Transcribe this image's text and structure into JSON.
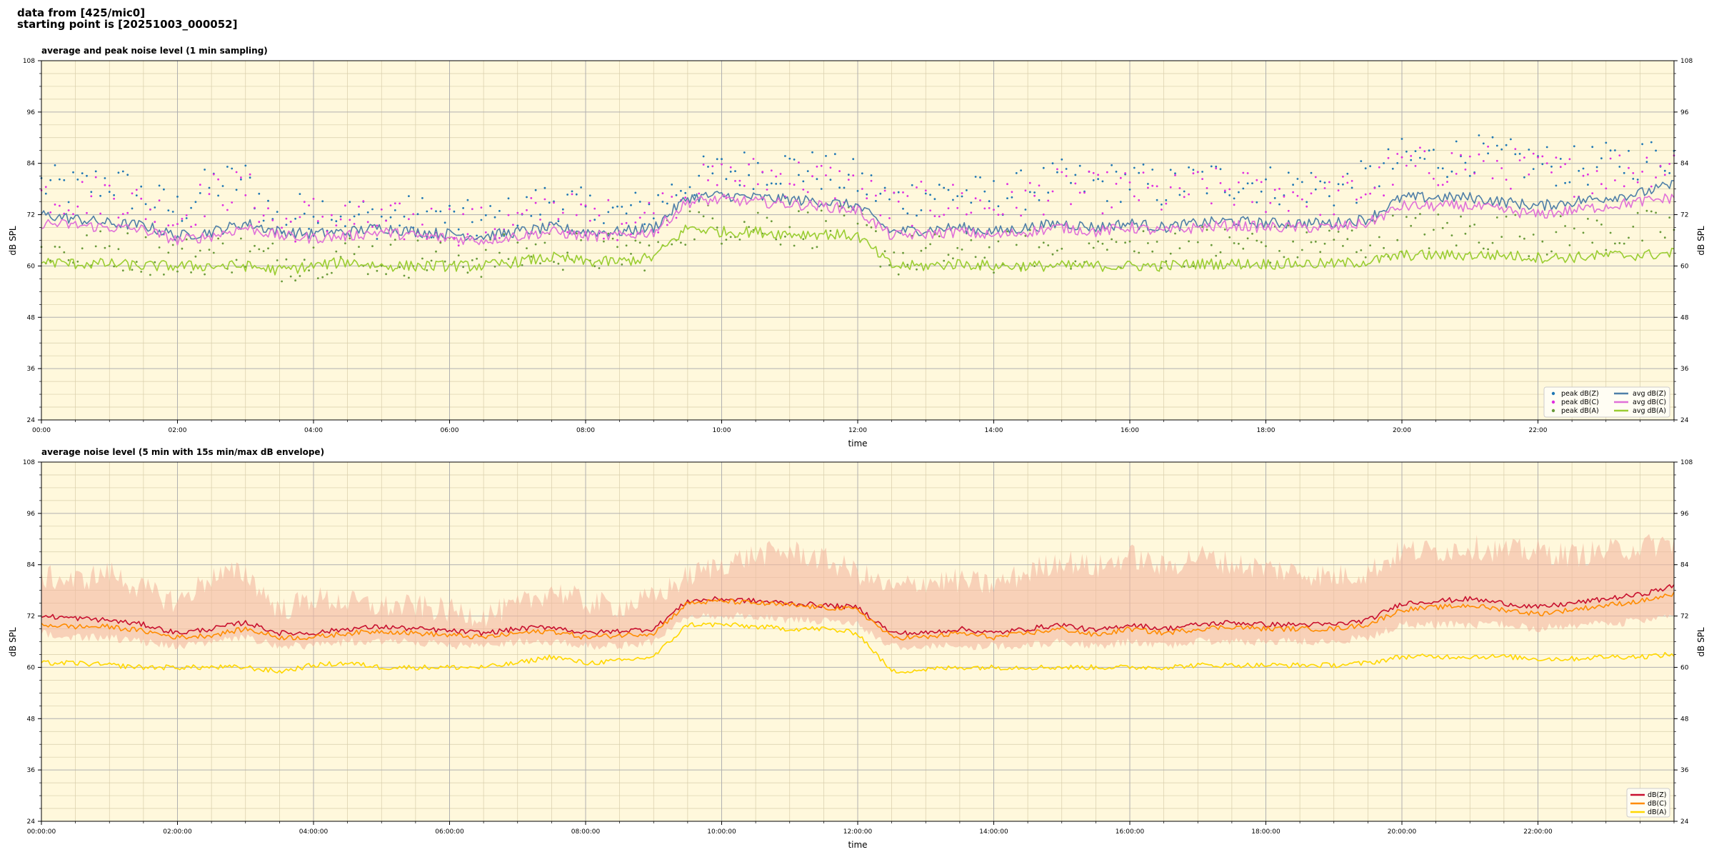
{
  "header": {
    "line1": "data from [425/mic0]",
    "line2": "starting point is [20251003_000052]"
  },
  "colors": {
    "panel_bg": "#fff8dc",
    "peak_z": "#1f77b4",
    "peak_c": "#e02ee0",
    "peak_a": "#6a9a3a",
    "avg_z": "#4f7fa8",
    "avg_c": "#e070d8",
    "avg_a": "#9acd32",
    "db_z": "#c8102e",
    "db_c": "#ff8c00",
    "db_a": "#ffd700",
    "envelope": "#f4b8a0"
  },
  "chart_data": [
    {
      "type": "line",
      "title": "average and peak noise level (1 min sampling)",
      "xlabel": "time",
      "ylabel": "dB SPL",
      "xlim_hours": [
        0,
        24
      ],
      "ylim": [
        24,
        108
      ],
      "yticks": [
        24,
        36,
        48,
        60,
        72,
        84,
        96,
        108
      ],
      "xtick_labels": [
        "00:00",
        "02:00",
        "04:00",
        "06:00",
        "08:00",
        "10:00",
        "12:00",
        "14:00",
        "16:00",
        "18:00",
        "20:00",
        "22:00"
      ],
      "grid": true,
      "legend_position": "lower right",
      "x_hours": [
        0,
        0.5,
        1,
        1.5,
        2,
        2.5,
        3,
        3.5,
        4,
        4.5,
        5,
        5.5,
        6,
        6.5,
        7,
        7.5,
        8,
        8.5,
        9,
        9.5,
        10,
        10.5,
        11,
        11.5,
        12,
        12.5,
        13,
        13.5,
        14,
        14.5,
        15,
        15.5,
        16,
        16.5,
        17,
        17.5,
        18,
        18.5,
        19,
        19.5,
        20,
        20.5,
        21,
        21.5,
        22,
        22.5,
        23,
        23.5,
        24
      ],
      "series": [
        {
          "name": "avg dB(Z)",
          "kind": "line",
          "values": [
            72,
            71,
            70,
            69.5,
            67,
            68,
            70,
            68,
            67.5,
            68,
            69,
            68,
            67.5,
            67,
            68,
            69,
            68,
            68,
            69,
            76,
            76.5,
            76,
            75.5,
            75,
            74,
            68,
            68.5,
            69,
            68,
            69,
            70,
            69,
            70,
            69,
            70,
            70.5,
            70,
            70,
            70,
            71,
            76,
            76,
            76,
            75,
            74,
            75,
            76,
            77,
            79
          ]
        },
        {
          "name": "avg dB(C)",
          "kind": "line",
          "values": [
            70,
            69.5,
            69,
            68.5,
            66,
            67,
            69,
            67,
            66.5,
            67,
            68,
            67,
            66.5,
            66,
            67,
            68,
            67,
            67,
            68,
            75,
            75.5,
            75,
            74.5,
            74,
            73,
            67,
            67.5,
            68,
            67,
            68,
            69,
            68,
            69,
            68,
            69,
            69.5,
            69,
            69,
            69,
            70,
            74,
            74,
            74,
            73,
            72,
            73,
            74,
            75,
            76
          ]
        },
        {
          "name": "avg dB(A)",
          "kind": "line",
          "values": [
            61,
            60.5,
            60.5,
            60,
            60,
            60,
            60,
            59,
            60,
            61,
            60,
            60,
            60,
            60,
            61,
            62,
            61,
            61,
            62,
            69,
            68,
            68,
            67.5,
            67.5,
            67,
            60,
            60,
            60.5,
            60,
            60,
            60,
            60,
            60,
            60,
            60.5,
            60.5,
            60.5,
            60.5,
            60.5,
            61,
            62.5,
            62.5,
            62.5,
            62.5,
            62,
            62,
            62.5,
            62.5,
            63
          ]
        },
        {
          "name": "peak dB(Z)",
          "kind": "scatter",
          "values": [
            79,
            78,
            80,
            76,
            73,
            79,
            80,
            70,
            74,
            72,
            71,
            72,
            71,
            70,
            72,
            76,
            73,
            72,
            74,
            80,
            82,
            83,
            83,
            82,
            80,
            75,
            77,
            77,
            76,
            78,
            80,
            79,
            80,
            78,
            80,
            80,
            79,
            79,
            78,
            80,
            85,
            85,
            86,
            85,
            84,
            83,
            84,
            85,
            86
          ]
        },
        {
          "name": "peak dB(C)",
          "kind": "scatter",
          "values": [
            77,
            76,
            77,
            74,
            71,
            77,
            78,
            69,
            72,
            71,
            70,
            70,
            70,
            69,
            70,
            74,
            71,
            71,
            72,
            78,
            80,
            81,
            81,
            80,
            78,
            73,
            75,
            75,
            74,
            76,
            78,
            77,
            78,
            76,
            78,
            78,
            77,
            77,
            76,
            78,
            83,
            83,
            84,
            83,
            82,
            81,
            82,
            83,
            84
          ]
        },
        {
          "name": "peak dB(A)",
          "kind": "scatter",
          "values": [
            64,
            63,
            64,
            63,
            62,
            63,
            63,
            61,
            62,
            63,
            62,
            62,
            62,
            62,
            63,
            64,
            63,
            63,
            64,
            70,
            70,
            70,
            69,
            69,
            69,
            62,
            63,
            63,
            63,
            64,
            64,
            64,
            64,
            64,
            65,
            65,
            65,
            65,
            65,
            66,
            68,
            68,
            68,
            68,
            67,
            67,
            68,
            68,
            69
          ]
        }
      ],
      "legend_entries": [
        "peak dB(Z)",
        "peak dB(C)",
        "peak dB(A)",
        "avg dB(Z)",
        "avg dB(C)",
        "avg dB(A)"
      ]
    },
    {
      "type": "line",
      "title": "average noise level (5 min with 15s min/max dB envelope)",
      "xlabel": "time",
      "ylabel": "dB SPL",
      "xlim_hours": [
        0,
        24
      ],
      "ylim": [
        24,
        108
      ],
      "yticks": [
        24,
        36,
        48,
        60,
        72,
        84,
        96,
        108
      ],
      "xtick_labels": [
        "00:00:00",
        "02:00:00",
        "04:00:00",
        "06:00:00",
        "08:00:00",
        "10:00:00",
        "12:00:00",
        "14:00:00",
        "16:00:00",
        "18:00:00",
        "20:00:00",
        "22:00:00"
      ],
      "grid": true,
      "legend_position": "lower right",
      "x_hours": [
        0,
        0.5,
        1,
        1.5,
        2,
        2.5,
        3,
        3.5,
        4,
        4.5,
        5,
        5.5,
        6,
        6.5,
        7,
        7.5,
        8,
        8.5,
        9,
        9.5,
        10,
        10.5,
        11,
        11.5,
        12,
        12.5,
        13,
        13.5,
        14,
        14.5,
        15,
        15.5,
        16,
        16.5,
        17,
        17.5,
        18,
        18.5,
        19,
        19.5,
        20,
        20.5,
        21,
        21.5,
        22,
        22.5,
        23,
        23.5,
        24
      ],
      "series": [
        {
          "name": "dB(Z)",
          "kind": "line",
          "values": [
            72,
            71.5,
            71,
            70,
            68,
            69,
            70.5,
            68,
            68,
            69,
            69.5,
            69,
            68.5,
            68,
            69,
            69.5,
            68,
            68.5,
            69,
            75.5,
            76,
            75.5,
            75,
            74.5,
            74,
            68,
            68,
            69,
            68,
            69,
            70,
            68.5,
            70,
            69,
            70,
            70.5,
            70,
            70,
            70,
            71,
            75,
            75.5,
            76,
            75,
            74,
            75,
            76,
            77,
            79
          ]
        },
        {
          "name": "dB(C)",
          "kind": "line",
          "values": [
            70,
            69.5,
            69.5,
            68.5,
            67,
            67.5,
            69,
            67,
            67,
            68,
            68.5,
            68,
            67.5,
            67,
            68,
            68.5,
            67,
            67.5,
            68,
            75,
            75.5,
            75,
            74.5,
            74,
            73.5,
            67,
            67,
            68,
            67,
            68,
            69,
            67.5,
            69,
            68,
            69,
            69.5,
            69,
            69,
            69,
            70,
            73.5,
            74,
            74.5,
            73.5,
            72.5,
            73.5,
            74.5,
            75.5,
            77
          ]
        },
        {
          "name": "dB(A)",
          "kind": "line",
          "values": [
            61,
            61,
            60.5,
            60,
            60,
            60,
            60,
            59,
            60.5,
            61,
            60,
            60,
            60,
            60,
            61,
            62.5,
            61,
            61.5,
            62.5,
            70,
            70,
            69.5,
            69,
            69,
            68,
            59,
            59.5,
            60,
            60,
            60,
            60,
            60,
            60,
            60,
            60.5,
            60.5,
            60.5,
            60.5,
            60.5,
            61,
            62.5,
            62.5,
            62.5,
            62.5,
            62,
            62,
            62.5,
            62.5,
            63
          ]
        },
        {
          "name": "envelope",
          "kind": "band",
          "lower": [
            68,
            67,
            67,
            66,
            65,
            66,
            67,
            65,
            65,
            66,
            66,
            66,
            65,
            65,
            66,
            66,
            65,
            65,
            66,
            72,
            72,
            72,
            71,
            71,
            70,
            65,
            65,
            65,
            65,
            65,
            66,
            65,
            66,
            65,
            66,
            66,
            66,
            66,
            66,
            67,
            70,
            70,
            70,
            70,
            69,
            70,
            70,
            71,
            72
          ],
          "upper": [
            80,
            79,
            81,
            77,
            74,
            80,
            81,
            72,
            75,
            74,
            73,
            73,
            72,
            71,
            73,
            77,
            74,
            73,
            75,
            80,
            83,
            85,
            86,
            84,
            81,
            77,
            79,
            79,
            78,
            81,
            84,
            82,
            85,
            82,
            85,
            83,
            82,
            81,
            80,
            81,
            86,
            86,
            87,
            86,
            86,
            85,
            86,
            87,
            88
          ]
        }
      ],
      "legend_entries": [
        "dB(Z)",
        "dB(C)",
        "dB(A)"
      ]
    }
  ]
}
